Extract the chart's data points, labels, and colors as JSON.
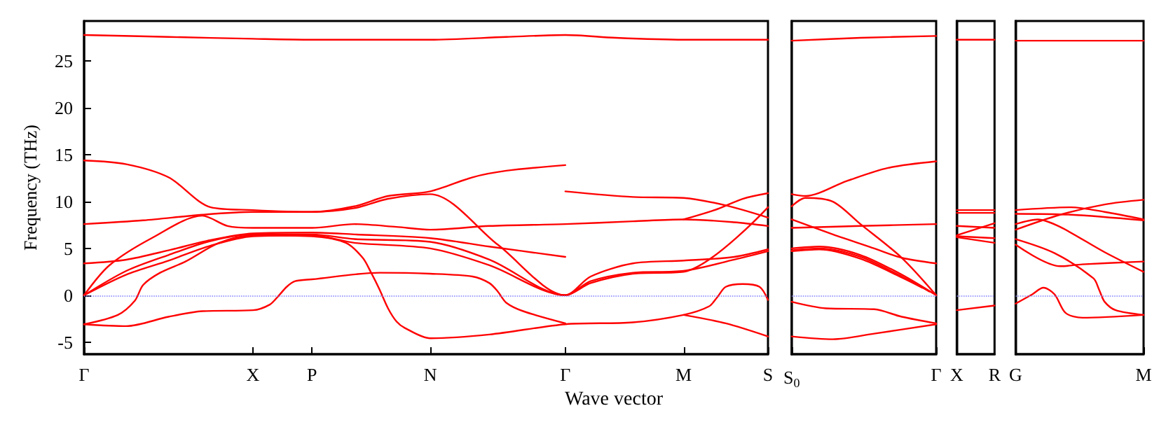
{
  "chart_data": [
    {
      "type": "line",
      "ylabel": "Frequency (THz)",
      "xlabel": "Wave vector",
      "ylim": [
        -6.3,
        29.3
      ],
      "yticks": [
        -5,
        0,
        5,
        10,
        15,
        20,
        25
      ],
      "categories": [
        "Γ",
        null,
        null,
        null,
        null,
        null,
        null,
        null,
        null,
        null,
        null,
        null,
        null,
        null,
        null,
        null,
        null,
        null,
        null,
        null,
        "X",
        null,
        null,
        null,
        null,
        null,
        null,
        "P",
        null,
        null,
        null,
        null,
        null,
        null,
        null,
        null,
        null,
        null,
        null,
        null,
        null,
        "N",
        null,
        null,
        null,
        null,
        null,
        null,
        null,
        null,
        null,
        null,
        null,
        null,
        null,
        null,
        null,
        "Γ",
        null,
        null,
        null,
        null,
        null,
        null,
        null,
        null,
        null,
        null,
        null,
        null,
        null,
        "M",
        null,
        null,
        null,
        null,
        null,
        null,
        null,
        null,
        null,
        "S"
      ],
      "ref_lines": [
        {
          "axis": "y",
          "value": 0,
          "label": null,
          "color": "#8080ff",
          "line_style": "dotted"
        }
      ],
      "series": [
        {
          "color": "#ff0000",
          "values": [
            27.8,
            null,
            null,
            null,
            null,
            null,
            null,
            null,
            null,
            null,
            27.6,
            null,
            null,
            null,
            null,
            null,
            null,
            null,
            null,
            null,
            27.4,
            null,
            null,
            null,
            null,
            null,
            null,
            27.3,
            null,
            null,
            null,
            null,
            null,
            null,
            null,
            null,
            null,
            null,
            null,
            null,
            null,
            27.3,
            null,
            null,
            null,
            null,
            null,
            null,
            null,
            null,
            27.6,
            null,
            null,
            null,
            null,
            null,
            null,
            27.8,
            null,
            null,
            null,
            null,
            null,
            27.5,
            null,
            null,
            null,
            null,
            null,
            null,
            null,
            27.3,
            null,
            null,
            null,
            null,
            null,
            null,
            null,
            null,
            null,
            27.3
          ]
        },
        {
          "color": "#ff0000",
          "values": [
            14.4,
            null,
            null,
            null,
            null,
            14.0,
            null,
            null,
            null,
            null,
            12.6,
            null,
            null,
            null,
            null,
            9.4,
            null,
            null,
            null,
            null,
            9.1,
            null,
            null,
            null,
            null,
            null,
            null,
            8.9,
            null,
            null,
            null,
            null,
            9.5,
            null,
            null,
            null,
            10.6,
            null,
            null,
            null,
            null,
            11.1,
            null,
            null,
            null,
            null,
            12.6,
            null,
            null,
            null,
            13.3,
            null,
            null,
            null,
            null,
            null,
            null,
            13.9,
            null,
            null,
            null,
            null,
            null,
            null,
            null,
            null,
            null,
            null,
            null,
            null,
            null,
            null,
            null,
            null,
            null,
            null,
            null,
            null,
            null,
            null,
            null,
            null
          ]
        },
        {
          "color": "#ff0000",
          "values": [
            7.6,
            null,
            null,
            null,
            null,
            null,
            null,
            8.0,
            null,
            null,
            null,
            null,
            null,
            null,
            8.6,
            null,
            null,
            null,
            null,
            null,
            8.9,
            null,
            null,
            null,
            null,
            null,
            null,
            8.9,
            null,
            null,
            null,
            null,
            9.3,
            null,
            null,
            null,
            10.3,
            null,
            null,
            null,
            null,
            10.8,
            null,
            null,
            null,
            null,
            null,
            null,
            null,
            5.4,
            null,
            null,
            null,
            null,
            null,
            null,
            null,
            0,
            null,
            null,
            2.0,
            null,
            null,
            null,
            null,
            3.4,
            null,
            null,
            null,
            null,
            null,
            3.7,
            null,
            null,
            null,
            null,
            null,
            4.1,
            null,
            null,
            null,
            4.9
          ]
        },
        {
          "color": "#ff0000",
          "values": [
            0,
            null,
            null,
            3.2,
            null,
            null,
            null,
            null,
            6.1,
            null,
            null,
            null,
            null,
            null,
            8.5,
            null,
            null,
            7.4,
            null,
            null,
            7.2,
            null,
            null,
            null,
            null,
            null,
            null,
            7.2,
            null,
            null,
            null,
            null,
            7.6,
            null,
            null,
            null,
            null,
            7.3,
            null,
            null,
            null,
            7.0,
            null,
            null,
            null,
            null,
            null,
            null,
            7.4,
            null,
            null,
            null,
            null,
            null,
            null,
            null,
            null,
            7.6,
            null,
            null,
            null,
            null,
            null,
            null,
            null,
            7.9,
            null,
            null,
            null,
            null,
            null,
            8.1,
            null,
            null,
            null,
            null,
            null,
            7.8,
            null,
            null,
            null,
            7.4
          ]
        },
        {
          "color": "#ff0000",
          "values": [
            3.4,
            null,
            null,
            null,
            null,
            3.8,
            null,
            null,
            null,
            null,
            4.8,
            null,
            null,
            null,
            null,
            5.9,
            null,
            null,
            null,
            null,
            6.6,
            null,
            null,
            null,
            null,
            null,
            null,
            6.7,
            null,
            null,
            null,
            null,
            6.5,
            null,
            null,
            null,
            null,
            null,
            null,
            null,
            null,
            6.1,
            null,
            null,
            null,
            null,
            null,
            null,
            5.2,
            null,
            null,
            null,
            null,
            null,
            null,
            null,
            null,
            4.1,
            null,
            null,
            null,
            null,
            null,
            null,
            null,
            null,
            null,
            null,
            null,
            null,
            null,
            null,
            null,
            null,
            null,
            null,
            null,
            null,
            null,
            null,
            null,
            null
          ]
        },
        {
          "color": "#ff0000",
          "values": [
            0,
            null,
            null,
            null,
            null,
            2.2,
            null,
            null,
            null,
            null,
            3.7,
            null,
            null,
            null,
            null,
            5.3,
            null,
            null,
            null,
            null,
            6.3,
            null,
            null,
            null,
            null,
            null,
            null,
            6.4,
            null,
            null,
            null,
            null,
            5.6,
            null,
            null,
            null,
            null,
            null,
            null,
            null,
            null,
            5.0,
            null,
            null,
            null,
            null,
            null,
            null,
            3.2,
            null,
            null,
            null,
            null,
            null,
            null,
            null,
            null,
            0,
            null,
            null,
            1.3,
            null,
            null,
            null,
            null,
            2.3,
            null,
            null,
            null,
            null,
            null,
            2.5,
            null,
            null,
            null,
            null,
            null,
            null,
            null,
            null,
            null,
            9.4
          ]
        },
        {
          "color": "#ff0000",
          "values": [
            0,
            null,
            null,
            null,
            null,
            2.6,
            null,
            null,
            null,
            null,
            4.3,
            null,
            null,
            null,
            null,
            5.8,
            null,
            null,
            null,
            null,
            6.5,
            null,
            null,
            null,
            null,
            null,
            null,
            6.5,
            null,
            null,
            null,
            null,
            6.0,
            null,
            null,
            null,
            null,
            null,
            null,
            null,
            null,
            5.7,
            null,
            null,
            null,
            null,
            null,
            null,
            3.8,
            null,
            null,
            null,
            null,
            null,
            null,
            null,
            null,
            0,
            null,
            null,
            1.5,
            null,
            null,
            null,
            null,
            2.4,
            null,
            null,
            null,
            null,
            null,
            2.6,
            null,
            null,
            null,
            null,
            null,
            3.8,
            null,
            null,
            null,
            4.7
          ]
        },
        {
          "color": "#ff0000",
          "values": [
            -3.1,
            null,
            null,
            null,
            -2.1,
            null,
            -0.6,
            1.1,
            null,
            2.4,
            null,
            null,
            3.6,
            null,
            null,
            null,
            5.6,
            null,
            null,
            null,
            6.4,
            null,
            null,
            null,
            null,
            null,
            null,
            6.3,
            null,
            null,
            null,
            5.6,
            null,
            4.0,
            2.4,
            0.6,
            -1.4,
            -2.8,
            -3.5,
            null,
            null,
            -4.6,
            null,
            null,
            null,
            null,
            null,
            null,
            -4.2,
            null,
            null,
            null,
            null,
            null,
            null,
            null,
            null,
            -3.1,
            null,
            null,
            null,
            null,
            null,
            null,
            null,
            -2.9,
            null,
            null,
            null,
            null,
            null,
            -2.1,
            null,
            null,
            -1.2,
            -0.2,
            0.9,
            null,
            1.2,
            null,
            0.9,
            -0.5
          ]
        },
        {
          "color": "#ff0000",
          "values": [
            -3.1,
            null,
            null,
            null,
            null,
            -3.3,
            null,
            null,
            null,
            null,
            -2.3,
            null,
            null,
            null,
            -1.7,
            null,
            null,
            null,
            null,
            null,
            -1.6,
            null,
            -1.0,
            -0.1,
            0.9,
            1.5,
            null,
            1.7,
            null,
            null,
            null,
            null,
            null,
            null,
            null,
            2.4,
            null,
            null,
            null,
            null,
            null,
            2.3,
            null,
            null,
            null,
            null,
            2.0,
            null,
            1.3,
            0.4,
            -0.8,
            null,
            -1.7,
            null,
            null,
            null,
            null,
            -3.0,
            null,
            null,
            null,
            null,
            null,
            null,
            null,
            null,
            null,
            null,
            null,
            null,
            null,
            null,
            null,
            null,
            null,
            null,
            null,
            null,
            null,
            null,
            null,
            null
          ]
        },
        {
          "color": "#ff0000",
          "values": [
            null,
            null,
            null,
            null,
            null,
            null,
            null,
            null,
            null,
            null,
            null,
            null,
            null,
            null,
            null,
            null,
            null,
            null,
            null,
            null,
            null,
            null,
            null,
            null,
            null,
            null,
            null,
            null,
            null,
            null,
            null,
            null,
            null,
            null,
            null,
            null,
            null,
            null,
            null,
            null,
            null,
            null,
            null,
            null,
            null,
            null,
            null,
            null,
            null,
            null,
            null,
            null,
            null,
            null,
            null,
            null,
            null,
            11.1,
            null,
            null,
            null,
            null,
            null,
            null,
            null,
            10.5,
            null,
            null,
            null,
            null,
            null,
            10.4,
            null,
            null,
            null,
            null,
            9.6,
            null,
            null,
            null,
            null,
            8.3
          ]
        },
        {
          "color": "#ff0000",
          "values": [
            null,
            null,
            null,
            null,
            null,
            null,
            null,
            null,
            null,
            null,
            null,
            null,
            null,
            null,
            null,
            null,
            null,
            null,
            null,
            null,
            null,
            null,
            null,
            null,
            null,
            null,
            null,
            null,
            null,
            null,
            null,
            null,
            null,
            null,
            null,
            null,
            null,
            null,
            null,
            null,
            null,
            null,
            null,
            null,
            null,
            null,
            null,
            null,
            null,
            null,
            null,
            null,
            null,
            null,
            null,
            null,
            null,
            null,
            null,
            null,
            null,
            null,
            null,
            null,
            null,
            null,
            null,
            null,
            null,
            null,
            null,
            8.1,
            null,
            null,
            null,
            9.2,
            null,
            null,
            10.3,
            null,
            null,
            10.9
          ]
        },
        {
          "color": "#ff0000",
          "values": [
            null,
            null,
            null,
            null,
            null,
            null,
            null,
            null,
            null,
            null,
            null,
            null,
            null,
            null,
            null,
            null,
            null,
            null,
            null,
            null,
            null,
            null,
            null,
            null,
            null,
            null,
            null,
            null,
            null,
            null,
            null,
            null,
            null,
            null,
            null,
            null,
            null,
            null,
            null,
            null,
            null,
            null,
            null,
            null,
            null,
            null,
            null,
            null,
            null,
            null,
            null,
            null,
            null,
            null,
            null,
            null,
            null,
            null,
            null,
            null,
            null,
            null,
            null,
            null,
            null,
            null,
            null,
            null,
            null,
            null,
            null,
            -2.1,
            null,
            null,
            null,
            null,
            -3.0,
            null,
            null,
            null,
            null,
            -4.4
          ]
        }
      ]
    },
    {
      "type": "line",
      "tick_labels": "x",
      "ylim": [
        -6.3,
        29.3
      ],
      "yticks": [
        -5,
        0,
        5,
        10,
        15,
        20,
        25
      ],
      "categories": [
        "S$_{0}$",
        null,
        null,
        null,
        null,
        null,
        null,
        null,
        null,
        null,
        null,
        null,
        null,
        null,
        null,
        null,
        null,
        null,
        null,
        null,
        null,
        "Γ"
      ],
      "ref_lines": [
        {
          "axis": "y",
          "value": 0,
          "label": null,
          "color": "#8080ff",
          "line_style": "dotted"
        }
      ],
      "series": [
        {
          "color": "#ff0000",
          "values": [
            27.2,
            null,
            null,
            null,
            null,
            null,
            null,
            null,
            null,
            null,
            27.5,
            null,
            null,
            null,
            null,
            null,
            null,
            null,
            null,
            null,
            null,
            27.7
          ]
        },
        {
          "color": "#ff0000",
          "values": [
            10.8,
            null,
            10.6,
            null,
            null,
            null,
            null,
            null,
            12.2,
            null,
            null,
            null,
            null,
            null,
            13.6,
            null,
            null,
            null,
            null,
            null,
            null,
            14.3
          ]
        },
        {
          "color": "#ff0000",
          "values": [
            9.5,
            null,
            10.4,
            null,
            null,
            null,
            10.0,
            null,
            null,
            null,
            7.6,
            null,
            null,
            null,
            null,
            null,
            4.0,
            null,
            null,
            null,
            null,
            0
          ]
        },
        {
          "color": "#ff0000",
          "values": [
            8.1,
            null,
            null,
            null,
            null,
            null,
            6.5,
            null,
            null,
            null,
            null,
            null,
            5.0,
            null,
            null,
            null,
            4.0,
            null,
            null,
            null,
            null,
            3.4
          ]
        },
        {
          "color": "#ff0000",
          "values": [
            7.2,
            null,
            null,
            null,
            null,
            null,
            null,
            null,
            null,
            null,
            7.4,
            null,
            null,
            null,
            null,
            null,
            null,
            null,
            null,
            null,
            null,
            7.6
          ]
        },
        {
          "color": "#ff0000",
          "values": [
            5.0,
            null,
            null,
            null,
            5.2,
            null,
            null,
            null,
            null,
            null,
            4.3,
            null,
            null,
            null,
            null,
            null,
            2.2,
            null,
            null,
            null,
            null,
            0
          ]
        },
        {
          "color": "#ff0000",
          "values": [
            4.8,
            null,
            null,
            null,
            5.0,
            null,
            null,
            null,
            null,
            null,
            4.1,
            null,
            null,
            null,
            null,
            null,
            2.0,
            null,
            null,
            null,
            0.4,
            null
          ]
        },
        {
          "color": "#ff0000",
          "values": [
            4.7,
            null,
            null,
            null,
            4.9,
            null,
            null,
            null,
            null,
            null,
            3.9,
            null,
            null,
            null,
            null,
            null,
            1.9,
            null,
            null,
            0.8,
            null,
            null
          ]
        },
        {
          "color": "#ff0000",
          "values": [
            -0.7,
            null,
            null,
            null,
            null,
            -1.4,
            null,
            null,
            null,
            null,
            null,
            null,
            -1.5,
            null,
            null,
            null,
            -2.3,
            null,
            null,
            null,
            null,
            -3.0
          ]
        },
        {
          "color": "#ff0000",
          "values": [
            -4.4,
            null,
            null,
            null,
            null,
            null,
            -4.7,
            null,
            null,
            null,
            null,
            null,
            -4.1,
            null,
            null,
            null,
            null,
            null,
            null,
            null,
            null,
            -3.1
          ]
        }
      ]
    },
    {
      "type": "line",
      "tick_labels": "x",
      "ylim": [
        -6.3,
        29.3
      ],
      "yticks": [
        -5,
        0,
        5,
        10,
        15,
        20,
        25
      ],
      "categories": [
        "X",
        "R"
      ],
      "ref_lines": [
        {
          "axis": "y",
          "value": 0,
          "label": null,
          "color": "#8080ff",
          "line_style": "dotted"
        }
      ],
      "series": [
        {
          "color": "#ff0000",
          "values": [
            27.3,
            27.3
          ]
        },
        {
          "color": "#ff0000",
          "values": [
            9.1,
            9.1
          ]
        },
        {
          "color": "#ff0000",
          "values": [
            8.8,
            8.8
          ]
        },
        {
          "color": "#ff0000",
          "values": [
            7.4,
            7.2
          ]
        },
        {
          "color": "#ff0000",
          "values": [
            6.4,
            7.7
          ]
        },
        {
          "color": "#ff0000",
          "values": [
            6.3,
            6.1
          ]
        },
        {
          "color": "#ff0000",
          "values": [
            6.2,
            5.6
          ]
        },
        {
          "color": "#ff0000",
          "values": [
            -1.6,
            -1.1
          ]
        }
      ]
    },
    {
      "type": "line",
      "tick_labels": "x",
      "ylim": [
        -6.3,
        29.3
      ],
      "yticks": [
        -5,
        0,
        5,
        10,
        15,
        20,
        25
      ],
      "categories": [
        "G",
        null,
        null,
        null,
        null,
        null,
        null,
        null,
        null,
        null,
        null,
        null,
        null,
        null,
        null,
        null,
        null,
        null,
        null,
        null,
        null,
        null,
        null,
        "M"
      ],
      "ref_lines": [
        {
          "axis": "y",
          "value": 0,
          "label": null,
          "color": "#8080ff",
          "line_style": "dotted"
        }
      ],
      "series": [
        {
          "color": "#ff0000",
          "values": [
            27.2,
            null,
            null,
            null,
            null,
            null,
            null,
            null,
            null,
            null,
            null,
            null,
            null,
            null,
            null,
            null,
            null,
            null,
            null,
            null,
            null,
            null,
            null,
            27.2
          ]
        },
        {
          "color": "#ff0000",
          "values": [
            9.1,
            null,
            null,
            null,
            null,
            null,
            null,
            null,
            null,
            null,
            9.4,
            null,
            null,
            null,
            null,
            null,
            8.9,
            null,
            null,
            null,
            null,
            null,
            null,
            8.1
          ]
        },
        {
          "color": "#ff0000",
          "values": [
            8.7,
            null,
            null,
            null,
            null,
            null,
            null,
            null,
            null,
            null,
            8.6,
            null,
            null,
            null,
            null,
            null,
            null,
            null,
            null,
            null,
            null,
            null,
            null,
            8.0
          ]
        },
        {
          "color": "#ff0000",
          "values": [
            7.0,
            null,
            null,
            null,
            null,
            null,
            null,
            null,
            8.6,
            null,
            null,
            null,
            null,
            null,
            null,
            null,
            9.7,
            null,
            null,
            null,
            null,
            null,
            null,
            10.2
          ]
        },
        {
          "color": "#ff0000",
          "values": [
            7.6,
            null,
            null,
            null,
            8.1,
            null,
            null,
            null,
            7.3,
            null,
            null,
            null,
            null,
            null,
            null,
            null,
            4.6,
            null,
            null,
            null,
            null,
            null,
            null,
            2.5
          ]
        },
        {
          "color": "#ff0000",
          "values": [
            5.4,
            null,
            null,
            null,
            null,
            null,
            null,
            null,
            3.1,
            null,
            null,
            null,
            3.3,
            null,
            null,
            null,
            null,
            null,
            null,
            null,
            null,
            null,
            null,
            3.6
          ]
        },
        {
          "color": "#ff0000",
          "values": [
            6.0,
            null,
            null,
            null,
            null,
            null,
            null,
            4.5,
            null,
            null,
            null,
            null,
            null,
            null,
            1.8,
            0.6,
            -0.7,
            null,
            -1.6,
            null,
            null,
            null,
            null,
            -2.1
          ]
        },
        {
          "color": "#ff0000",
          "values": [
            -0.9,
            null,
            null,
            0.1,
            null,
            0.8,
            null,
            0.1,
            null,
            -1.9,
            null,
            null,
            -2.4,
            null,
            null,
            null,
            null,
            null,
            null,
            null,
            null,
            null,
            null,
            -2.1
          ]
        }
      ]
    }
  ]
}
